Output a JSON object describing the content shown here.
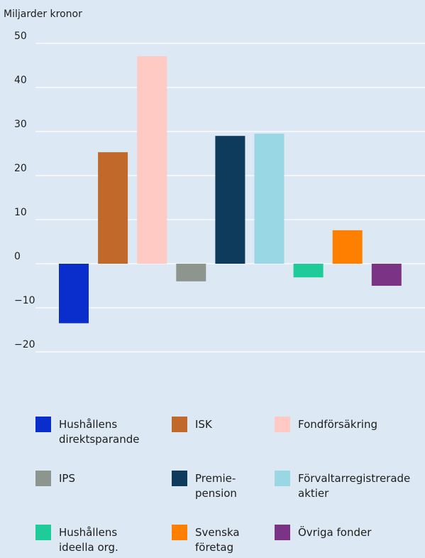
{
  "chart_data": {
    "type": "bar",
    "y_label": "Miljarder kronor",
    "categories": [
      "Hushållens direktsparande",
      "ISK",
      "Fondförsäkring",
      "IPS",
      "Premie-pension",
      "Förvaltarregistrerade aktier",
      "Hushållens ideella org.",
      "Svenska företag",
      "Övriga fonder"
    ],
    "values": [
      -13.5,
      25.3,
      47.1,
      -4.0,
      29.0,
      29.5,
      -3.1,
      7.6,
      -5.0
    ],
    "colors": [
      "#0a2ecb",
      "#c1692a",
      "#ffc9c4",
      "#8e958f",
      "#0e3a5c",
      "#9ad7e5",
      "#1fcb99",
      "#ff8000",
      "#7b3386"
    ],
    "ylim": [
      -20,
      50
    ],
    "yticks": [
      50,
      40,
      30,
      20,
      10,
      0,
      {
        "value": -10,
        "label": "−10"
      },
      {
        "value": -20,
        "label": "−20"
      }
    ],
    "grid": true
  }
}
